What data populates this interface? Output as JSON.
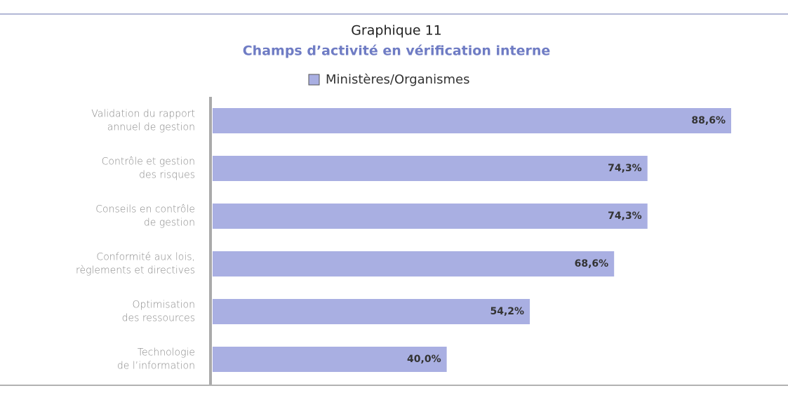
{
  "chart_data": {
    "type": "bar",
    "orientation": "horizontal",
    "title": "Graphique 11",
    "subtitle": "Champs d’activité en vérification interne",
    "categories": [
      [
        "Validation du rapport",
        "annuel de gestion"
      ],
      [
        "Contrôle et gestion",
        "des risques"
      ],
      [
        "Conseils en contrôle",
        "de gestion"
      ],
      [
        "Conformité aux lois,",
        "règlements et directives"
      ],
      [
        "Optimisation",
        "des ressources"
      ],
      [
        "Technologie",
        "de l’information"
      ]
    ],
    "series": [
      {
        "name": "Ministères/Organismes",
        "color": "#a9afe2",
        "values": [
          88.6,
          74.3,
          74.3,
          68.6,
          54.2,
          40.0
        ],
        "value_labels": [
          "88,6%",
          "74,3%",
          "74,3%",
          "68,6%",
          "54,2%",
          "40,0%"
        ]
      }
    ]
  }
}
